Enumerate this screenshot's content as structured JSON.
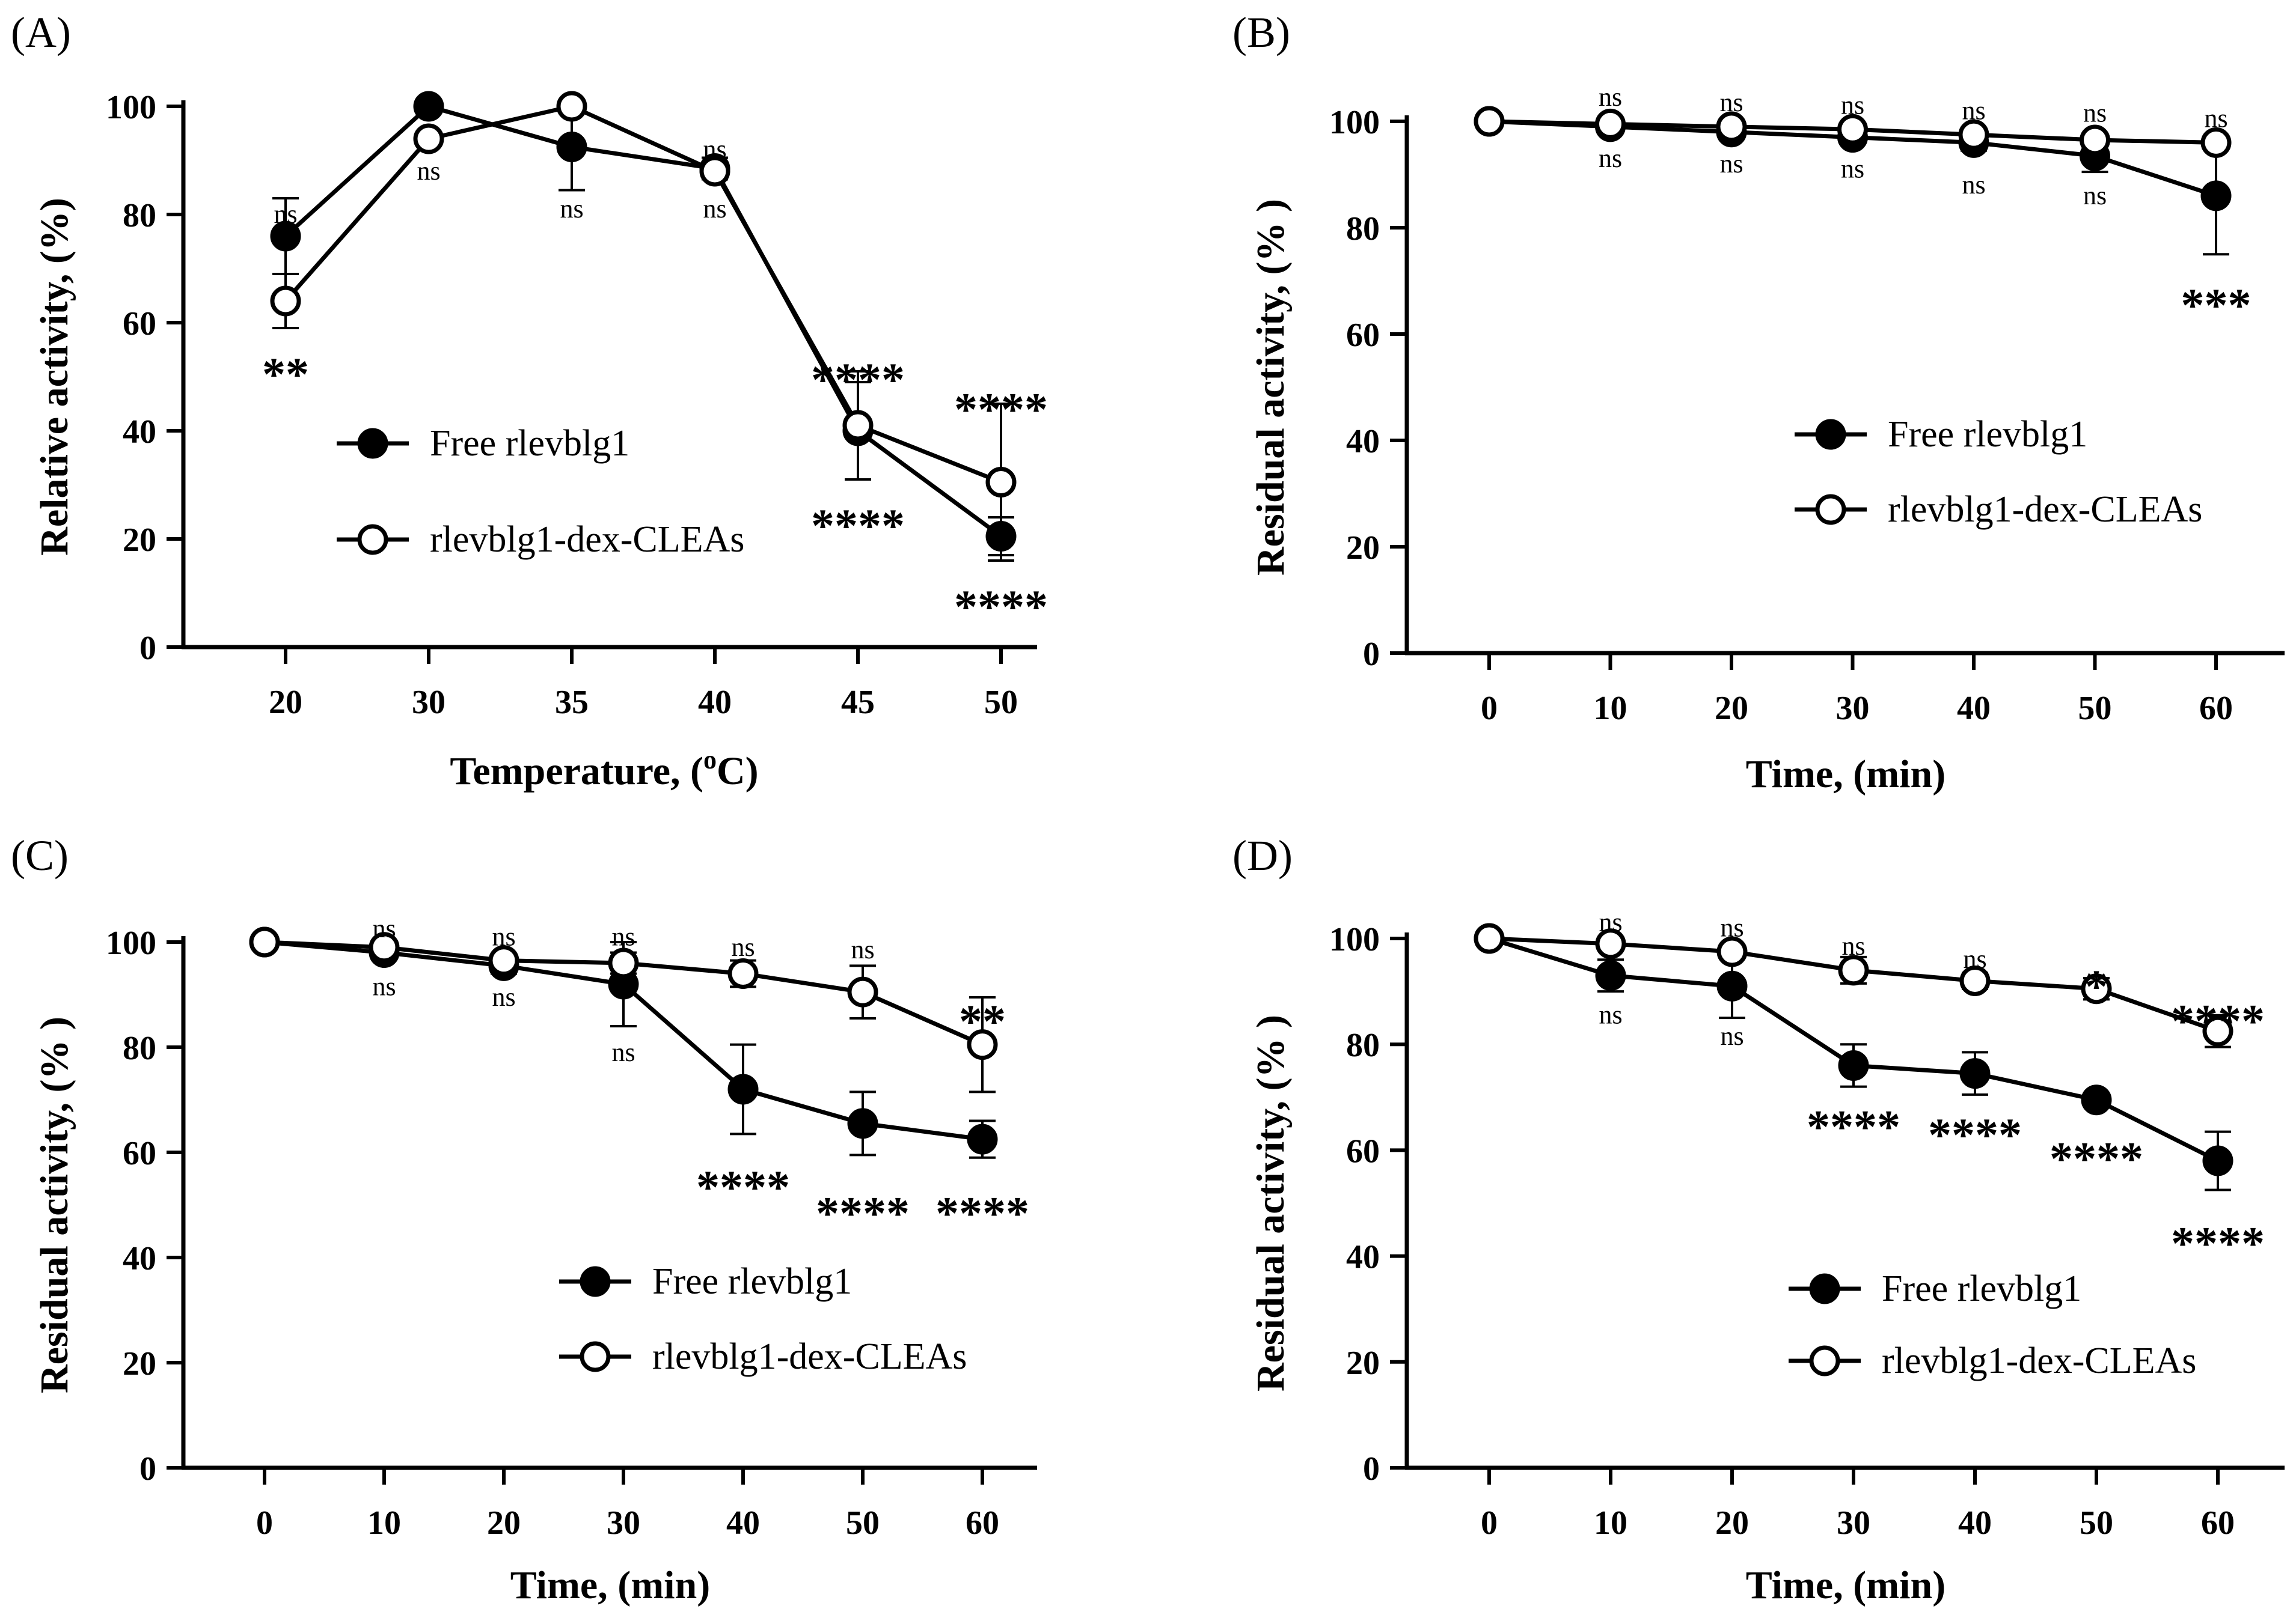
{
  "chart_data": [
    {
      "id": "A",
      "type": "line",
      "panel_label": "(A)",
      "xlabel": "Temperature, (oC)",
      "xlabel_main": "Temperature, (",
      "xlabel_sup": "o",
      "xlabel_end": "C)",
      "ylabel": "Relative activity, (%)",
      "categories": [
        "20",
        "30",
        "35",
        "40",
        "45",
        "50"
      ],
      "ylim": [
        0,
        100
      ],
      "yticks": [
        0,
        20,
        40,
        60,
        80,
        100
      ],
      "series": [
        {
          "name": "Free rlevblg1",
          "marker": "filled",
          "values": [
            76,
            100,
            92.5,
            88.5,
            40,
            20.5
          ],
          "err": [
            7,
            0,
            8,
            2,
            9,
            3.5
          ]
        },
        {
          "name": "rlevblg1-dex-CLEAs",
          "marker": "open",
          "values": [
            64,
            94,
            100,
            88,
            41,
            30.5
          ],
          "err": [
            5,
            0,
            0,
            1.5,
            10,
            14.5
          ]
        }
      ],
      "annotations": [
        {
          "text": "ns",
          "x": 0,
          "y": 80,
          "style": "ns"
        },
        {
          "text": "**",
          "x": 0,
          "y": 52,
          "style": "star"
        },
        {
          "text": "ns",
          "x": 1,
          "y": 88,
          "style": "ns"
        },
        {
          "text": "ns",
          "x": 2,
          "y": 81,
          "style": "ns"
        },
        {
          "text": "ns",
          "x": 3,
          "y": 92,
          "style": "ns"
        },
        {
          "text": "ns",
          "x": 3,
          "y": 81,
          "style": "ns"
        },
        {
          "text": "****",
          "x": 4,
          "y": 51,
          "style": "star"
        },
        {
          "text": "****",
          "x": 4,
          "y": 24,
          "style": "star"
        },
        {
          "text": "****",
          "x": 5,
          "y": 45.5,
          "style": "star"
        },
        {
          "text": "****",
          "x": 5,
          "y": 9,
          "style": "star"
        }
      ],
      "legend": [
        "Free rlevblg1",
        "rlevblg1-dex-CLEAs"
      ]
    },
    {
      "id": "B",
      "type": "line",
      "panel_label": "(B)",
      "xlabel": "Time, (min)",
      "ylabel": "Residual activity, (% )",
      "categories": [
        "0",
        "10",
        "20",
        "30",
        "40",
        "50",
        "60"
      ],
      "ylim": [
        0,
        100
      ],
      "yticks": [
        0,
        20,
        40,
        60,
        80,
        100
      ],
      "series": [
        {
          "name": "Free rlevblg1",
          "marker": "filled",
          "values": [
            100,
            99,
            98,
            97,
            96,
            93.5,
            86
          ],
          "err": [
            0,
            1,
            1,
            1,
            1.5,
            3,
            11
          ]
        },
        {
          "name": "rlevblg1-dex-CLEAs",
          "marker": "open",
          "values": [
            100,
            99.5,
            99,
            98.5,
            97.5,
            96.5,
            96
          ],
          "err": [
            0,
            0.5,
            0.5,
            0.5,
            0.5,
            0.5,
            0.5
          ]
        }
      ],
      "annotations": [
        {
          "text": "ns",
          "x": 1,
          "y": 104.5,
          "style": "ns"
        },
        {
          "text": "ns",
          "x": 1,
          "y": 93,
          "style": "ns"
        },
        {
          "text": "ns",
          "x": 2,
          "y": 103.5,
          "style": "ns"
        },
        {
          "text": "ns",
          "x": 2,
          "y": 92,
          "style": "ns"
        },
        {
          "text": "ns",
          "x": 3,
          "y": 103,
          "style": "ns"
        },
        {
          "text": "ns",
          "x": 3,
          "y": 91,
          "style": "ns"
        },
        {
          "text": "ns",
          "x": 4,
          "y": 102,
          "style": "ns"
        },
        {
          "text": "ns",
          "x": 4,
          "y": 88,
          "style": "ns"
        },
        {
          "text": "ns",
          "x": 5,
          "y": 101.5,
          "style": "ns"
        },
        {
          "text": "ns",
          "x": 5,
          "y": 86,
          "style": "ns"
        },
        {
          "text": "ns",
          "x": 6,
          "y": 100.5,
          "style": "ns"
        },
        {
          "text": "***",
          "x": 6,
          "y": 67,
          "style": "star"
        }
      ],
      "legend": [
        "Free rlevblg1",
        "rlevblg1-dex-CLEAs"
      ]
    },
    {
      "id": "C",
      "type": "line",
      "panel_label": "(C)",
      "xlabel": "Time, (min)",
      "ylabel": "Residual activity, (% )",
      "categories": [
        "0",
        "10",
        "20",
        "30",
        "40",
        "50",
        "60"
      ],
      "ylim": [
        0,
        100
      ],
      "yticks": [
        0,
        20,
        40,
        60,
        80,
        100
      ],
      "series": [
        {
          "name": "Free rlevblg1",
          "marker": "filled",
          "values": [
            100,
            98,
            95.5,
            92,
            72,
            65.5,
            62.5
          ],
          "err": [
            0,
            1,
            1.5,
            8,
            8.5,
            6,
            3.5
          ]
        },
        {
          "name": "rlevblg1-dex-CLEAs",
          "marker": "open",
          "values": [
            100,
            99,
            96.5,
            96,
            94,
            90.5,
            80.5
          ],
          "err": [
            0,
            0.5,
            1,
            2,
            2.5,
            5,
            9
          ]
        }
      ],
      "annotations": [
        {
          "text": "ns",
          "x": 1,
          "y": 102.5,
          "style": "ns"
        },
        {
          "text": "ns",
          "x": 1,
          "y": 91.5,
          "style": "ns"
        },
        {
          "text": "ns",
          "x": 2,
          "y": 101,
          "style": "ns"
        },
        {
          "text": "ns",
          "x": 2,
          "y": 89.5,
          "style": "ns"
        },
        {
          "text": "ns",
          "x": 3,
          "y": 101,
          "style": "ns"
        },
        {
          "text": "ns",
          "x": 3,
          "y": 79,
          "style": "ns"
        },
        {
          "text": "ns",
          "x": 4,
          "y": 99,
          "style": "ns"
        },
        {
          "text": "****",
          "x": 4,
          "y": 55,
          "style": "star"
        },
        {
          "text": "ns",
          "x": 5,
          "y": 98.5,
          "style": "ns"
        },
        {
          "text": "****",
          "x": 5,
          "y": 50,
          "style": "star"
        },
        {
          "text": "**",
          "x": 6,
          "y": 86.5,
          "style": "star"
        },
        {
          "text": "****",
          "x": 6,
          "y": 50,
          "style": "star"
        }
      ],
      "legend": [
        "Free rlevblg1",
        "rlevblg1-dex-CLEAs"
      ]
    },
    {
      "id": "D",
      "type": "line",
      "panel_label": "(D)",
      "xlabel": "Time, (min)",
      "ylabel": "Residual activity, (% )",
      "categories": [
        "0",
        "10",
        "20",
        "30",
        "40",
        "50",
        "60"
      ],
      "ylim": [
        0,
        100
      ],
      "yticks": [
        0,
        20,
        40,
        60,
        80,
        100
      ],
      "series": [
        {
          "name": "Free rlevblg1",
          "marker": "filled",
          "values": [
            100,
            93,
            91,
            76,
            74.5,
            69.5,
            58
          ],
          "err": [
            0,
            3,
            6,
            4,
            4,
            0,
            5.5
          ]
        },
        {
          "name": "rlevblg1-dex-CLEAs",
          "marker": "open",
          "values": [
            100,
            99,
            97.5,
            94,
            92,
            90.5,
            82.5
          ],
          "err": [
            0,
            0.5,
            0.5,
            2.5,
            1.5,
            2,
            3
          ]
        }
      ],
      "annotations": [
        {
          "text": "ns",
          "x": 1,
          "y": 103,
          "style": "ns"
        },
        {
          "text": "ns",
          "x": 1,
          "y": 85.5,
          "style": "ns"
        },
        {
          "text": "ns",
          "x": 2,
          "y": 102,
          "style": "ns"
        },
        {
          "text": "ns",
          "x": 2,
          "y": 81.5,
          "style": "ns"
        },
        {
          "text": "ns",
          "x": 3,
          "y": 98.5,
          "style": "ns"
        },
        {
          "text": "****",
          "x": 3,
          "y": 66,
          "style": "star"
        },
        {
          "text": "ns",
          "x": 4,
          "y": 96,
          "style": "ns"
        },
        {
          "text": "****",
          "x": 4,
          "y": 64.5,
          "style": "star"
        },
        {
          "text": "*",
          "x": 5,
          "y": 92.5,
          "style": "star"
        },
        {
          "text": "****",
          "x": 5,
          "y": 60,
          "style": "star"
        },
        {
          "text": "****",
          "x": 6,
          "y": 86,
          "style": "star"
        },
        {
          "text": "****",
          "x": 6,
          "y": 44,
          "style": "star"
        }
      ],
      "legend": [
        "Free rlevblg1",
        "rlevblg1-dex-CLEAs"
      ]
    }
  ]
}
